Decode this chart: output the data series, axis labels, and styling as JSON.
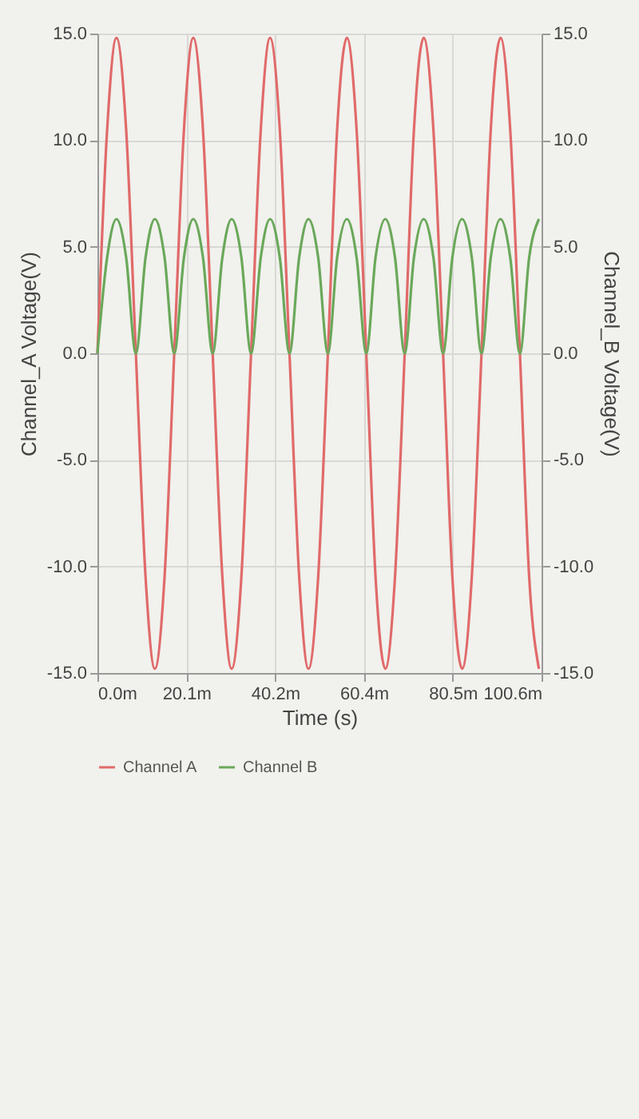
{
  "chart_data": {
    "type": "line",
    "xlabel": "Time (s)",
    "ylabel": "Channel_A Voltage(V)",
    "y2label": "Channel_B Voltage(V)",
    "x": [
      0,
      2.2,
      4.3,
      6.5,
      8.7,
      10.9,
      13.0,
      15.2,
      17.4,
      19.6,
      21.7,
      23.9,
      26.1,
      28.3,
      30.4,
      32.6,
      34.8,
      37.0,
      39.1,
      41.3,
      43.5,
      45.7,
      47.8,
      50.0,
      52.2,
      54.3,
      56.5,
      58.7,
      60.9,
      63.0,
      65.2,
      67.4,
      69.6,
      71.7,
      73.9,
      76.1,
      78.3,
      80.4,
      82.6,
      84.8,
      87.0,
      89.1,
      91.3,
      93.5,
      95.7,
      97.8,
      100.0
    ],
    "series": [
      {
        "name": "Channel A",
        "color": "#e06a6a",
        "values": [
          0,
          10.5,
          14.8,
          10.5,
          0,
          -10.5,
          -14.8,
          -10.5,
          0,
          10.5,
          14.8,
          10.5,
          0,
          -10.5,
          -14.8,
          -10.5,
          0,
          10.5,
          14.8,
          10.5,
          0,
          -10.5,
          -14.8,
          -10.5,
          0,
          10.5,
          14.8,
          10.5,
          0,
          -10.5,
          -14.8,
          -10.5,
          0,
          10.5,
          14.8,
          10.5,
          0,
          -10.5,
          -14.8,
          -10.5,
          0,
          10.5,
          14.8,
          10.5,
          0,
          -10.5,
          -14.8
        ]
      },
      {
        "name": "Channel B",
        "color": "#6aa85a",
        "axis": "y2",
        "values": [
          0,
          4.5,
          6.3,
          4.5,
          0,
          4.5,
          6.3,
          4.5,
          0,
          4.5,
          6.3,
          4.5,
          0,
          4.5,
          6.3,
          4.5,
          0,
          4.5,
          6.3,
          4.5,
          0,
          4.5,
          6.3,
          4.5,
          0,
          4.5,
          6.3,
          4.5,
          0,
          4.5,
          6.3,
          4.5,
          0,
          4.5,
          6.3,
          4.5,
          0,
          4.5,
          6.3,
          4.5,
          0,
          4.5,
          6.3,
          4.5,
          0,
          4.5,
          6.3
        ]
      }
    ],
    "xlim": [
      0,
      100.6
    ],
    "xticks": [
      {
        "value": 0,
        "label": "0.0m"
      },
      {
        "value": 20.12,
        "label": "20.1m"
      },
      {
        "value": 40.24,
        "label": "40.2m"
      },
      {
        "value": 60.36,
        "label": "60.4m"
      },
      {
        "value": 80.48,
        "label": "80.5m"
      },
      {
        "value": 100.6,
        "label": "100.6m"
      }
    ],
    "ylim": [
      -15,
      15
    ],
    "yticks": [
      {
        "value": -15,
        "label": "-15.0"
      },
      {
        "value": -10,
        "label": "-10.0"
      },
      {
        "value": -5,
        "label": "-5.0"
      },
      {
        "value": 0,
        "label": "0.0"
      },
      {
        "value": 5,
        "label": "5.0"
      },
      {
        "value": 10,
        "label": "10.0"
      },
      {
        "value": 15,
        "label": "15.0"
      }
    ],
    "y2lim": [
      -15,
      15
    ],
    "y2ticks": [
      {
        "value": -15,
        "label": "-15.0"
      },
      {
        "value": -10,
        "label": "-10.0"
      },
      {
        "value": -5,
        "label": "-5.0"
      },
      {
        "value": 0,
        "label": "0.0"
      },
      {
        "value": 5,
        "label": "5.0"
      },
      {
        "value": 10,
        "label": "10.0"
      },
      {
        "value": 15,
        "label": "15.0"
      }
    ],
    "grid": true,
    "legend": "bottom left",
    "line_style": "solid",
    "marker": "none"
  }
}
